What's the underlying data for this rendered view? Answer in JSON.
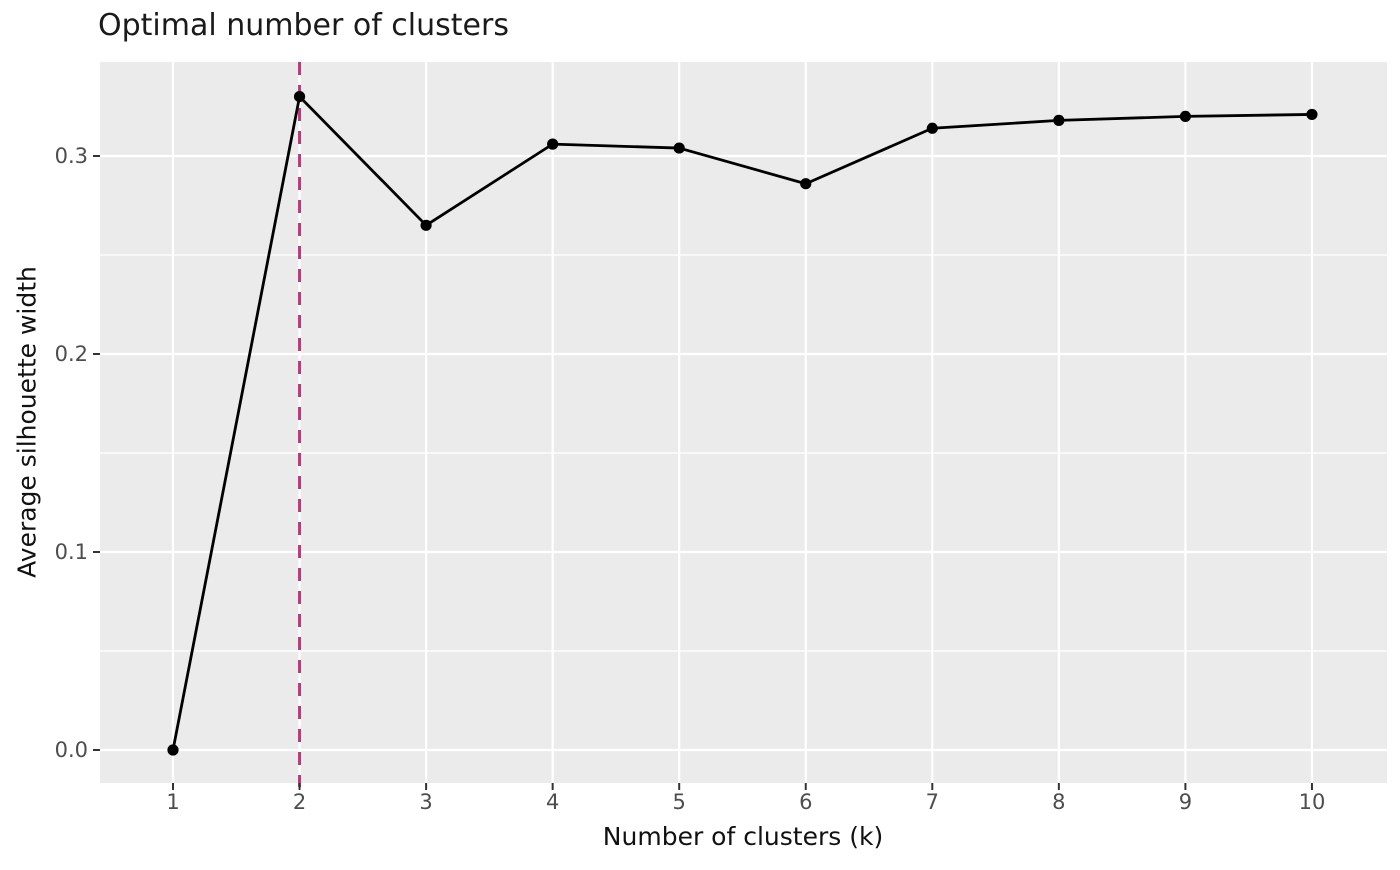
{
  "chart_data": {
    "type": "line",
    "title": "Optimal number of clusters",
    "xlabel": "Number of clusters (k)",
    "ylabel": "Average silhouette width",
    "x": [
      1,
      2,
      3,
      4,
      5,
      6,
      7,
      8,
      9,
      10
    ],
    "series": [
      {
        "name": "Average silhouette width",
        "values": [
          0.0,
          0.33,
          0.265,
          0.306,
          0.304,
          0.286,
          0.314,
          0.318,
          0.32,
          0.321
        ]
      }
    ],
    "x_tick_labels": [
      "1",
      "2",
      "3",
      "4",
      "5",
      "6",
      "7",
      "8",
      "9",
      "10"
    ],
    "y_ticks": [
      {
        "value": 0.0,
        "label": "0.0"
      },
      {
        "value": 0.1,
        "label": "0.1"
      },
      {
        "value": 0.2,
        "label": "0.2"
      },
      {
        "value": 0.3,
        "label": "0.3"
      }
    ],
    "y_minor_ticks": [
      0.05,
      0.15,
      0.25
    ],
    "ylim": [
      -0.017,
      0.347
    ],
    "xlim_categories": "discrete 1..10",
    "grid": "major white on gray panel, horizontal minors only",
    "legend": "none",
    "optimal_k": 2,
    "vline": {
      "x": 2,
      "style": "dashed",
      "color": "#B83A7D"
    },
    "colors": {
      "panel_background": "#EBEBEB",
      "gridline": "#FFFFFF",
      "line": "#000000",
      "point": "#000000",
      "vline": "#B83A7D",
      "tick": "#333333",
      "tick_label": "#4D4D4D",
      "title": "#1A1A1A"
    }
  }
}
